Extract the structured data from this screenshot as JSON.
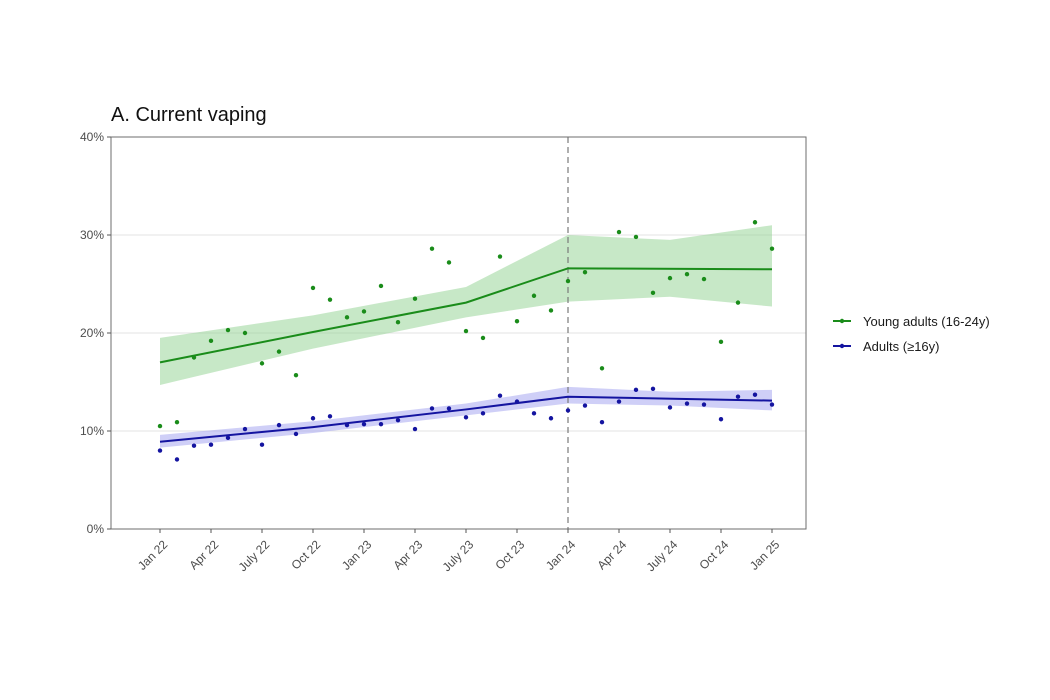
{
  "chart_data": {
    "type": "scatter",
    "title": "A. Current vaping",
    "xlabel": "",
    "ylabel": "",
    "ylim": [
      0,
      40
    ],
    "xlim": [
      "2021-12",
      "2025-01"
    ],
    "y_ticks": [
      0,
      10,
      20,
      30,
      40
    ],
    "y_tick_labels": [
      "0%",
      "10%",
      "20%",
      "30%",
      "40%"
    ],
    "x_ticks": [
      "2022-01",
      "2022-04",
      "2022-07",
      "2022-10",
      "2023-01",
      "2023-04",
      "2023-07",
      "2023-10",
      "2024-01",
      "2024-04",
      "2024-07",
      "2024-10",
      "2025-01"
    ],
    "x_tick_labels": [
      "Jan 22",
      "Apr 22",
      "July 22",
      "Oct 22",
      "Jan 23",
      "Apr 23",
      "July 23",
      "Oct 23",
      "Jan 24",
      "Apr 24",
      "July 24",
      "Oct 24",
      "Jan 25"
    ],
    "intervention": "2024-01",
    "grid": "horizontal",
    "legend_position": "right",
    "series": [
      {
        "name": "Young adults (16-24y)",
        "color": "#1a8c1a",
        "band_color": "#8fd18f",
        "points": [
          [
            "2022-01",
            10.5
          ],
          [
            "2022-02",
            10.9
          ],
          [
            "2022-03",
            17.5
          ],
          [
            "2022-04",
            19.2
          ],
          [
            "2022-05",
            20.3
          ],
          [
            "2022-06",
            20.0
          ],
          [
            "2022-07",
            16.9
          ],
          [
            "2022-08",
            18.1
          ],
          [
            "2022-09",
            15.7
          ],
          [
            "2022-10",
            24.6
          ],
          [
            "2022-11",
            23.4
          ],
          [
            "2022-12",
            21.6
          ],
          [
            "2023-01",
            22.2
          ],
          [
            "2023-02",
            24.8
          ],
          [
            "2023-03",
            21.1
          ],
          [
            "2023-04",
            23.5
          ],
          [
            "2023-05",
            28.6
          ],
          [
            "2023-06",
            27.2
          ],
          [
            "2023-07",
            20.2
          ],
          [
            "2023-08",
            19.5
          ],
          [
            "2023-09",
            27.8
          ],
          [
            "2023-10",
            21.2
          ],
          [
            "2023-11",
            23.8
          ],
          [
            "2023-12",
            22.3
          ],
          [
            "2024-01",
            25.3
          ],
          [
            "2024-02",
            26.2
          ],
          [
            "2024-03",
            16.4
          ],
          [
            "2024-04",
            30.3
          ],
          [
            "2024-05",
            29.8
          ],
          [
            "2024-06",
            24.1
          ],
          [
            "2024-07",
            25.6
          ],
          [
            "2024-08",
            26.0
          ],
          [
            "2024-09",
            25.5
          ],
          [
            "2024-10",
            19.1
          ],
          [
            "2024-11",
            23.1
          ],
          [
            "2024-12",
            31.3
          ],
          [
            "2025-01",
            28.6
          ]
        ],
        "fit": [
          [
            "2022-01",
            17.0
          ],
          [
            "2022-10",
            20.1
          ],
          [
            "2023-07",
            23.1
          ],
          [
            "2024-01",
            26.6
          ],
          [
            "2025-01",
            26.5
          ]
        ],
        "band_upper": [
          [
            "2022-01",
            19.5
          ],
          [
            "2022-10",
            21.8
          ],
          [
            "2023-07",
            24.7
          ],
          [
            "2024-01",
            30.0
          ],
          [
            "2024-07",
            29.5
          ],
          [
            "2025-01",
            31.0
          ]
        ],
        "band_lower": [
          [
            "2022-01",
            14.7
          ],
          [
            "2022-10",
            18.4
          ],
          [
            "2023-07",
            21.6
          ],
          [
            "2024-01",
            23.2
          ],
          [
            "2024-07",
            23.7
          ],
          [
            "2025-01",
            22.7
          ]
        ]
      },
      {
        "name": "Adults (≥16y)",
        "color": "#1414a0",
        "band_color": "#9f9ff0",
        "points": [
          [
            "2022-01",
            8.0
          ],
          [
            "2022-02",
            7.1
          ],
          [
            "2022-03",
            8.5
          ],
          [
            "2022-04",
            8.6
          ],
          [
            "2022-05",
            9.3
          ],
          [
            "2022-06",
            10.2
          ],
          [
            "2022-07",
            8.6
          ],
          [
            "2022-08",
            10.6
          ],
          [
            "2022-09",
            9.7
          ],
          [
            "2022-10",
            11.3
          ],
          [
            "2022-11",
            11.5
          ],
          [
            "2022-12",
            10.6
          ],
          [
            "2023-01",
            10.7
          ],
          [
            "2023-02",
            10.7
          ],
          [
            "2023-03",
            11.1
          ],
          [
            "2023-04",
            10.2
          ],
          [
            "2023-05",
            12.3
          ],
          [
            "2023-06",
            12.3
          ],
          [
            "2023-07",
            11.4
          ],
          [
            "2023-08",
            11.8
          ],
          [
            "2023-09",
            13.6
          ],
          [
            "2023-10",
            13.0
          ],
          [
            "2023-11",
            11.8
          ],
          [
            "2023-12",
            11.3
          ],
          [
            "2024-01",
            12.1
          ],
          [
            "2024-02",
            12.6
          ],
          [
            "2024-03",
            10.9
          ],
          [
            "2024-04",
            13.0
          ],
          [
            "2024-05",
            14.2
          ],
          [
            "2024-06",
            14.3
          ],
          [
            "2024-07",
            12.4
          ],
          [
            "2024-08",
            12.8
          ],
          [
            "2024-09",
            12.7
          ],
          [
            "2024-10",
            11.2
          ],
          [
            "2024-11",
            13.5
          ],
          [
            "2024-12",
            13.7
          ],
          [
            "2025-01",
            12.7
          ]
        ],
        "fit": [
          [
            "2022-01",
            8.9
          ],
          [
            "2022-10",
            10.4
          ],
          [
            "2023-07",
            12.2
          ],
          [
            "2024-01",
            13.5
          ],
          [
            "2025-01",
            13.1
          ]
        ],
        "band_upper": [
          [
            "2022-01",
            9.6
          ],
          [
            "2022-10",
            11.0
          ],
          [
            "2023-07",
            12.8
          ],
          [
            "2024-01",
            14.5
          ],
          [
            "2024-07",
            14.0
          ],
          [
            "2025-01",
            14.2
          ]
        ],
        "band_lower": [
          [
            "2022-01",
            8.3
          ],
          [
            "2022-10",
            9.8
          ],
          [
            "2023-07",
            11.6
          ],
          [
            "2024-01",
            12.8
          ],
          [
            "2024-07",
            12.6
          ],
          [
            "2025-01",
            12.1
          ]
        ]
      }
    ]
  }
}
